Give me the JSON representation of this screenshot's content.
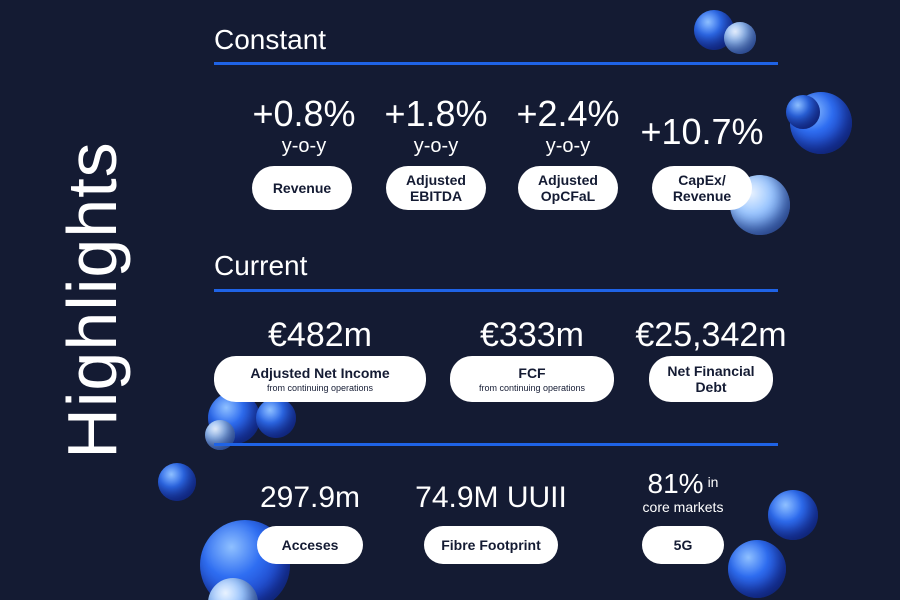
{
  "title": "Highlights",
  "constant": {
    "heading": "Constant",
    "metrics": [
      {
        "value": "+0.8%",
        "sub": "y-o-y",
        "label": "Revenue"
      },
      {
        "value": "+1.8%",
        "sub": "y-o-y",
        "label_line1": "Adjusted",
        "label_line2": "EBITDA"
      },
      {
        "value": "+2.4%",
        "sub": "y-o-y",
        "label_line1": "Adjusted",
        "label_line2": "OpCFaL"
      },
      {
        "value": "+10.7%",
        "label_line1": "CapEx/",
        "label_line2": "Revenue"
      }
    ]
  },
  "current": {
    "heading": "Current",
    "metrics": [
      {
        "value": "€482m",
        "label": "Adjusted Net Income",
        "note": "from continuing operations"
      },
      {
        "value": "€333m",
        "label": "FCF",
        "note": "from continuing operations"
      },
      {
        "value": "€25,342m",
        "label_line1": "Net Financial",
        "label_line2": "Debt"
      }
    ]
  },
  "other": {
    "metrics": [
      {
        "value": "297.9m",
        "label": "Acceses"
      },
      {
        "value": "74.9M UUII",
        "label": "Fibre Footprint"
      },
      {
        "value": "81%",
        "in": "in",
        "sub": "core markets",
        "label": "5G"
      }
    ]
  },
  "colors": {
    "background": "#141b33",
    "accent": "#1f63e6",
    "pill": "#ffffff"
  }
}
